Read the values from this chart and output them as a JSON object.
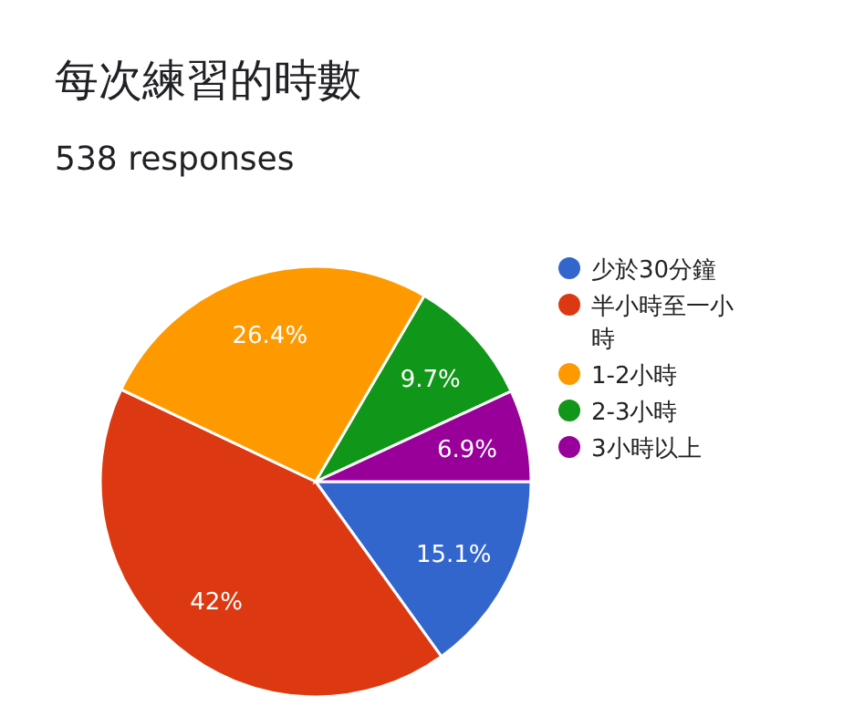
{
  "chart_data": {
    "type": "pie",
    "title": "每次練習的時數",
    "subtitle": "538 responses",
    "categories": [
      "少於30分鐘",
      "半小時至一小時",
      "1-2小時",
      "2-3小時",
      "3小時以上"
    ],
    "values": [
      15.1,
      42,
      26.4,
      9.7,
      6.9
    ],
    "colors": [
      "#3366cc",
      "#dc3912",
      "#ff9900",
      "#109618",
      "#990099"
    ],
    "value_labels": [
      "15.1%",
      "42%",
      "26.4%",
      "9.7%",
      "6.9%"
    ],
    "legend": "right"
  }
}
